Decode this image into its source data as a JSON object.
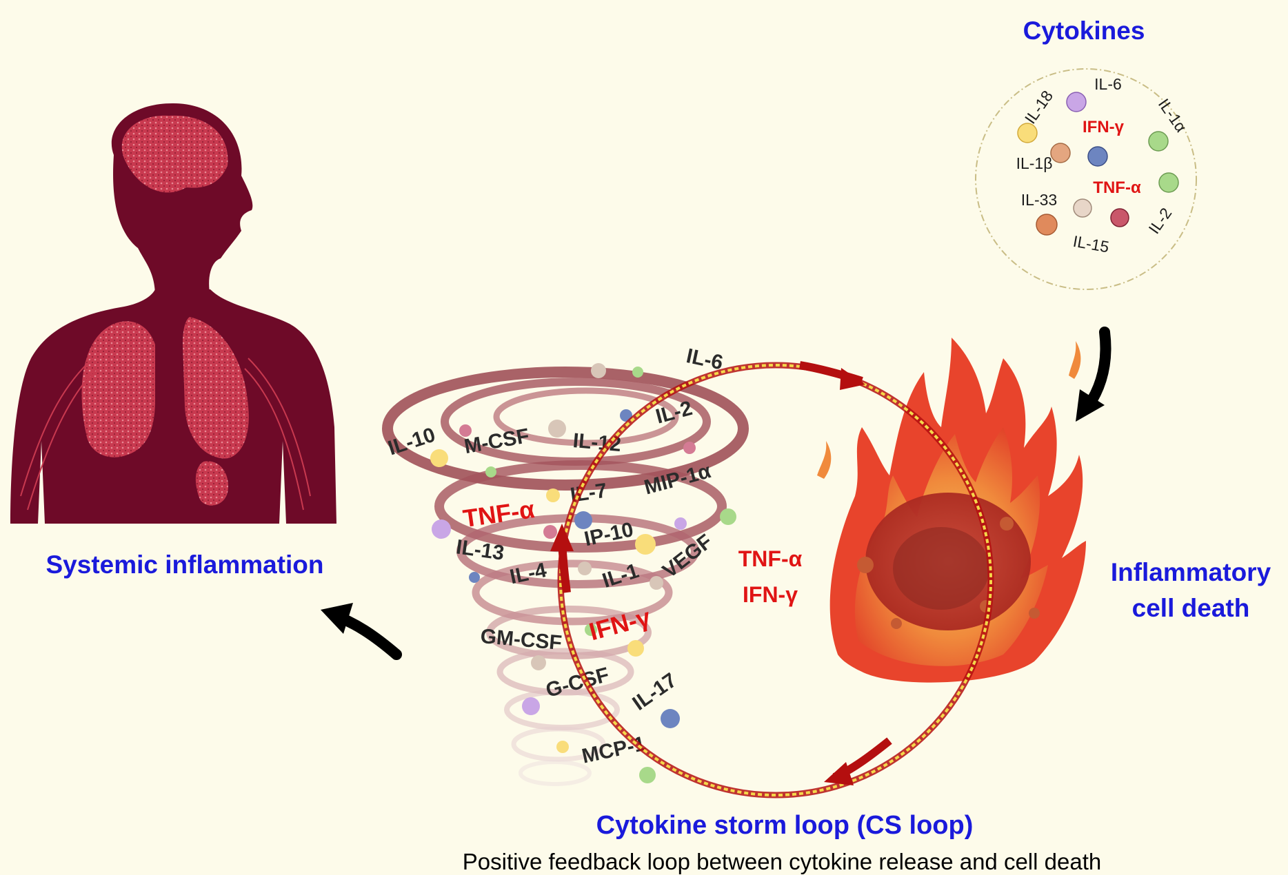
{
  "titles": {
    "cytokines": "Cytokines",
    "systemic": "Systemic inflammation",
    "cell_death_line1": "Inflammatory",
    "cell_death_line2": "cell death",
    "loop_title": "Cytokine storm loop (CS loop)",
    "loop_caption": "Positive feedback loop between cytokine release and cell death"
  },
  "cytokine_circle": {
    "il18": "IL-18",
    "il6": "IL-6",
    "il1a": "IL-1α",
    "ifng": "IFN-γ",
    "il1b": "IL-1β",
    "tnfa": "TNF-α",
    "il33": "IL-33",
    "il2": "IL-2",
    "il15": "IL-15"
  },
  "center_labels": {
    "tnf": "TNF-α",
    "ifn": "IFN-γ"
  },
  "tornado_labels": {
    "il6": "IL-6",
    "il2": "IL-2",
    "il10": "IL-10",
    "mcsf": "M-CSF",
    "il12": "IL-12",
    "mip1a": "MIP-1α",
    "tnfa": "TNF-α",
    "il7": "IL-7",
    "ip10": "IP-10",
    "il13": "IL-13",
    "il4": "IL-4",
    "il1": "IL-1",
    "vegf": "VEGF",
    "gmcsf": "GM-CSF",
    "ifng": "IFN-γ",
    "gcsf": "G-CSF",
    "il17": "IL-17",
    "mcp1": "MCP-1"
  },
  "colors": {
    "title_blue": "#1a1adb",
    "highlight_red": "#e01414",
    "body_maroon": "#6e0a28",
    "organ_red": "#c8394f",
    "loop_red": "#b40f0f",
    "background": "#fdfbea"
  },
  "icons": [
    "human-body-icon",
    "tornado-icon",
    "fire-icon",
    "cytokine-circle-icon",
    "arrow-icon"
  ]
}
